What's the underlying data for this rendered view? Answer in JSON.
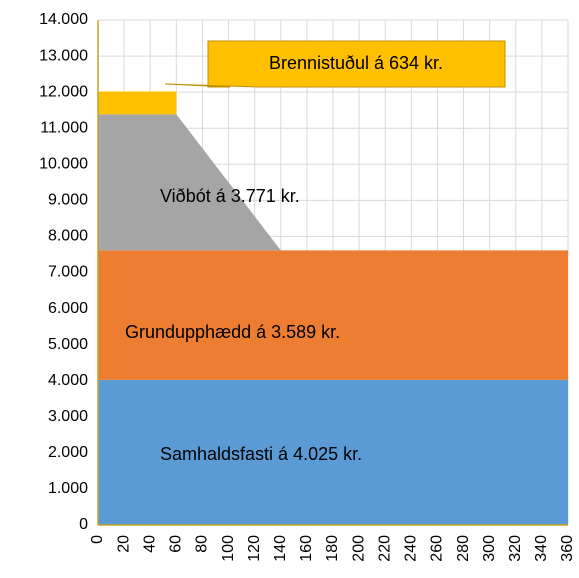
{
  "chart_data": {
    "type": "stacked_area",
    "x": [
      0,
      60,
      60,
      140,
      360
    ],
    "series": [
      {
        "color": "#5b9bd5",
        "values": [
          4025,
          4025,
          4025,
          4025,
          4025
        ]
      },
      {
        "color": "#ed7d31",
        "values": [
          3589,
          3589,
          3589,
          3589,
          3589
        ]
      },
      {
        "color": "#a5a5a5",
        "values": [
          3771,
          3771,
          3771,
          0,
          0
        ]
      },
      {
        "color": "#ffc000",
        "values": [
          634,
          634,
          0,
          0,
          0
        ]
      }
    ],
    "annotations": [
      "Samhaldsfasti á 4.025 kr.",
      "Grundupphædd á 3.589 kr.",
      "Viðbót á 3.771 kr.",
      "Brennistuðul á 634 kr."
    ],
    "xlim": [
      0,
      360
    ],
    "xticks": [
      0,
      20,
      40,
      60,
      80,
      100,
      120,
      140,
      160,
      180,
      200,
      220,
      240,
      260,
      280,
      300,
      320,
      340,
      360
    ],
    "ylim": [
      0,
      14000
    ],
    "yticks": [
      0,
      {
        "value": 1000,
        "label": "1.000"
      },
      {
        "value": 2000,
        "label": "2.000"
      },
      {
        "value": 3000,
        "label": "3.000"
      },
      {
        "value": 4000,
        "label": "4.000"
      },
      {
        "value": 5000,
        "label": "5.000"
      },
      {
        "value": 6000,
        "label": "6.000"
      },
      {
        "value": 7000,
        "label": "7.000"
      },
      {
        "value": 8000,
        "label": "8.000"
      },
      {
        "value": 9000,
        "label": "9.000"
      },
      {
        "value": 10000,
        "label": "10.000"
      },
      {
        "value": 11000,
        "label": "11.000"
      },
      {
        "value": 12000,
        "label": "12.000"
      },
      {
        "value": 13000,
        "label": "13.000"
      },
      {
        "value": 14000,
        "label": "14.000"
      }
    ],
    "grid": true
  }
}
